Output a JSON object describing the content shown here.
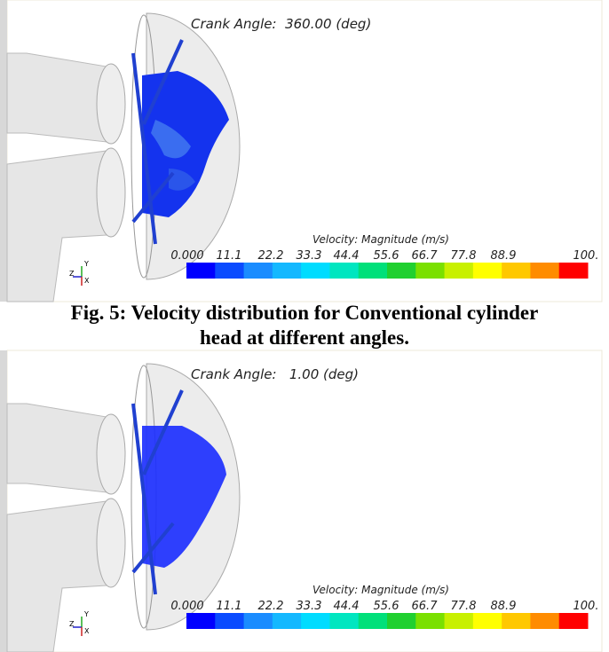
{
  "panels": [
    {
      "crank_angle": "Crank Angle:  360.00 (deg)",
      "colorbar_title": "Velocity: Magnitude (m/s)",
      "colorbar_ticks": [
        "0.000",
        "11.1",
        "22.2",
        "33.3",
        "44.4",
        "55.6",
        "66.7",
        "77.8",
        "88.9",
        "100."
      ],
      "axis_labels": [
        "Y",
        "Z",
        "X"
      ]
    },
    {
      "crank_angle": "Crank Angle:   1.00 (deg)",
      "colorbar_title": "Velocity: Magnitude (m/s)",
      "colorbar_ticks": [
        "0.000",
        "11.1",
        "22.2",
        "33.3",
        "44.4",
        "55.6",
        "66.7",
        "77.8",
        "88.9",
        "100."
      ],
      "axis_labels": [
        "Y",
        "Z",
        "X"
      ]
    }
  ],
  "caption": [
    "Fig. 5: Velocity distribution for Conventional cylinder",
    "head at different angles."
  ]
}
